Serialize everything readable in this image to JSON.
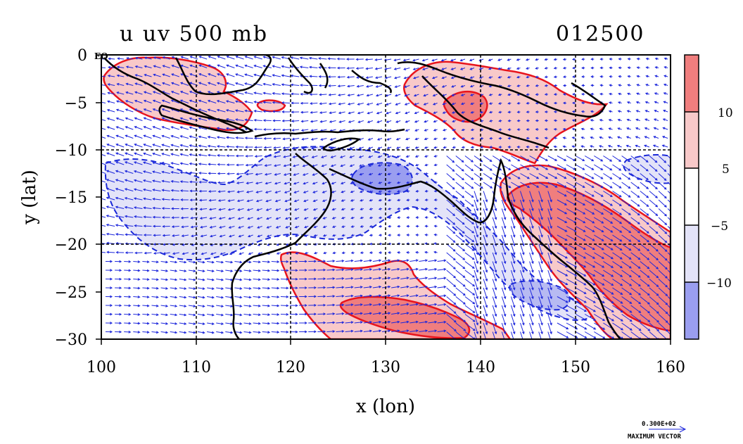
{
  "header": {
    "title": "u uv 500 mb",
    "date_code": "012500",
    "eq_mark": "EQ"
  },
  "chart_data": {
    "type": "heatmap",
    "title": "u uv 500 mb",
    "xlabel": "x (lon)",
    "ylabel": "y (lat)",
    "xlim": [
      100,
      160
    ],
    "ylim": [
      -30,
      0
    ],
    "x_ticks": [
      "100",
      "110",
      "120",
      "130",
      "140",
      "150",
      "160"
    ],
    "y_ticks": [
      "0",
      "−5",
      "−10",
      "−15",
      "−20",
      "−25",
      "−30"
    ],
    "grid": true,
    "colorbar": {
      "labels": [
        "10",
        "5",
        "−5",
        "−10"
      ],
      "bands": [
        {
          "range": "> 10",
          "color": "#f07e7e"
        },
        {
          "range": "5 to 10",
          "color": "#f8c9c9"
        },
        {
          "range": "-5 to 5",
          "color": "#ffffff"
        },
        {
          "range": "-10 to -5",
          "color": "#e3e3f8"
        },
        {
          "range": "< -10",
          "color": "#9a9ef0"
        }
      ]
    },
    "vector_legend": {
      "value": "0.300E+02",
      "label": "MAXIMUM VECTOR"
    },
    "colors": {
      "positive_contour": "#e8141c",
      "negative_contour": "#1a28d8",
      "vector": "#1e28dc",
      "coast": "#000000"
    }
  }
}
